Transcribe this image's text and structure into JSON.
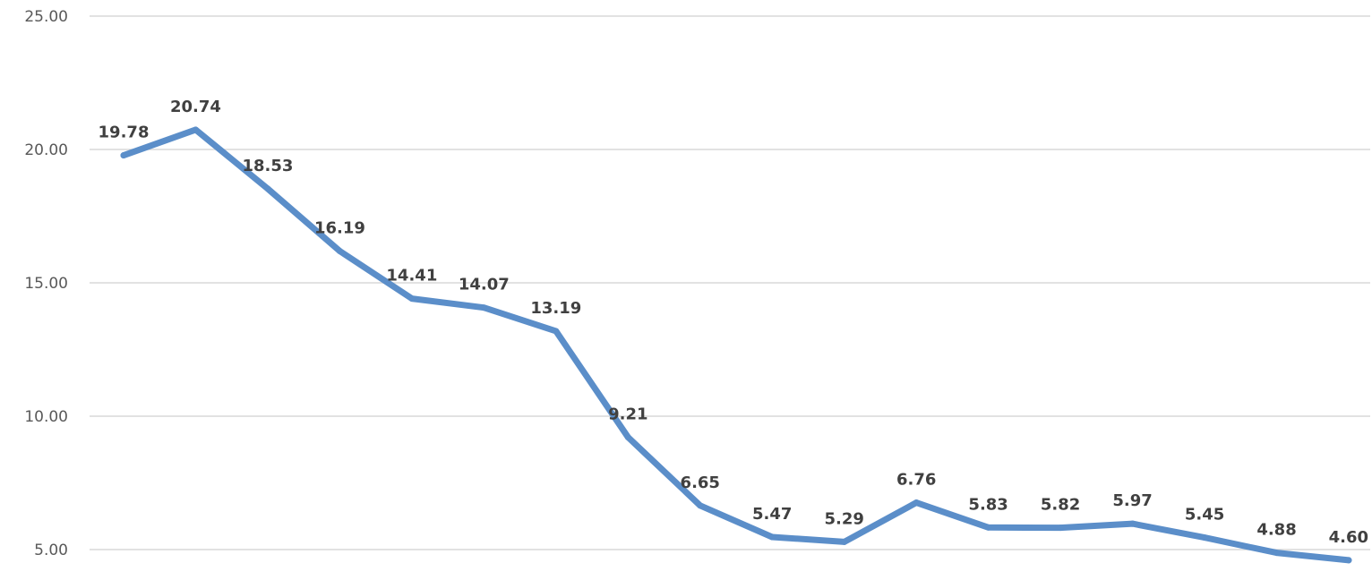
{
  "chart_data": {
    "type": "line",
    "title": "",
    "xlabel": "",
    "ylabel": "",
    "ylim": [
      5,
      25
    ],
    "yticks": [
      "5.00",
      "10.00",
      "15.00",
      "20.00",
      "25.00"
    ],
    "grid": true,
    "legend": "none",
    "x": [
      1,
      2,
      3,
      4,
      5,
      6,
      7,
      8,
      9,
      10,
      11,
      12,
      13,
      14,
      15,
      16,
      17,
      18
    ],
    "series": [
      {
        "color": "#5b8ec9",
        "values": [
          19.78,
          20.74,
          18.53,
          16.19,
          14.41,
          14.07,
          13.19,
          9.21,
          6.65,
          5.47,
          5.29,
          6.76,
          5.83,
          5.82,
          5.97,
          5.45,
          4.88,
          4.6
        ],
        "labels": [
          "19.78",
          "20.74",
          "18.53",
          "16.19",
          "14.41",
          "14.07",
          "13.19",
          "9.21",
          "6.65",
          "5.47",
          "5.29",
          "6.76",
          "5.83",
          "5.82",
          "5.97",
          "5.45",
          "4.88",
          "4.60"
        ]
      }
    ]
  }
}
